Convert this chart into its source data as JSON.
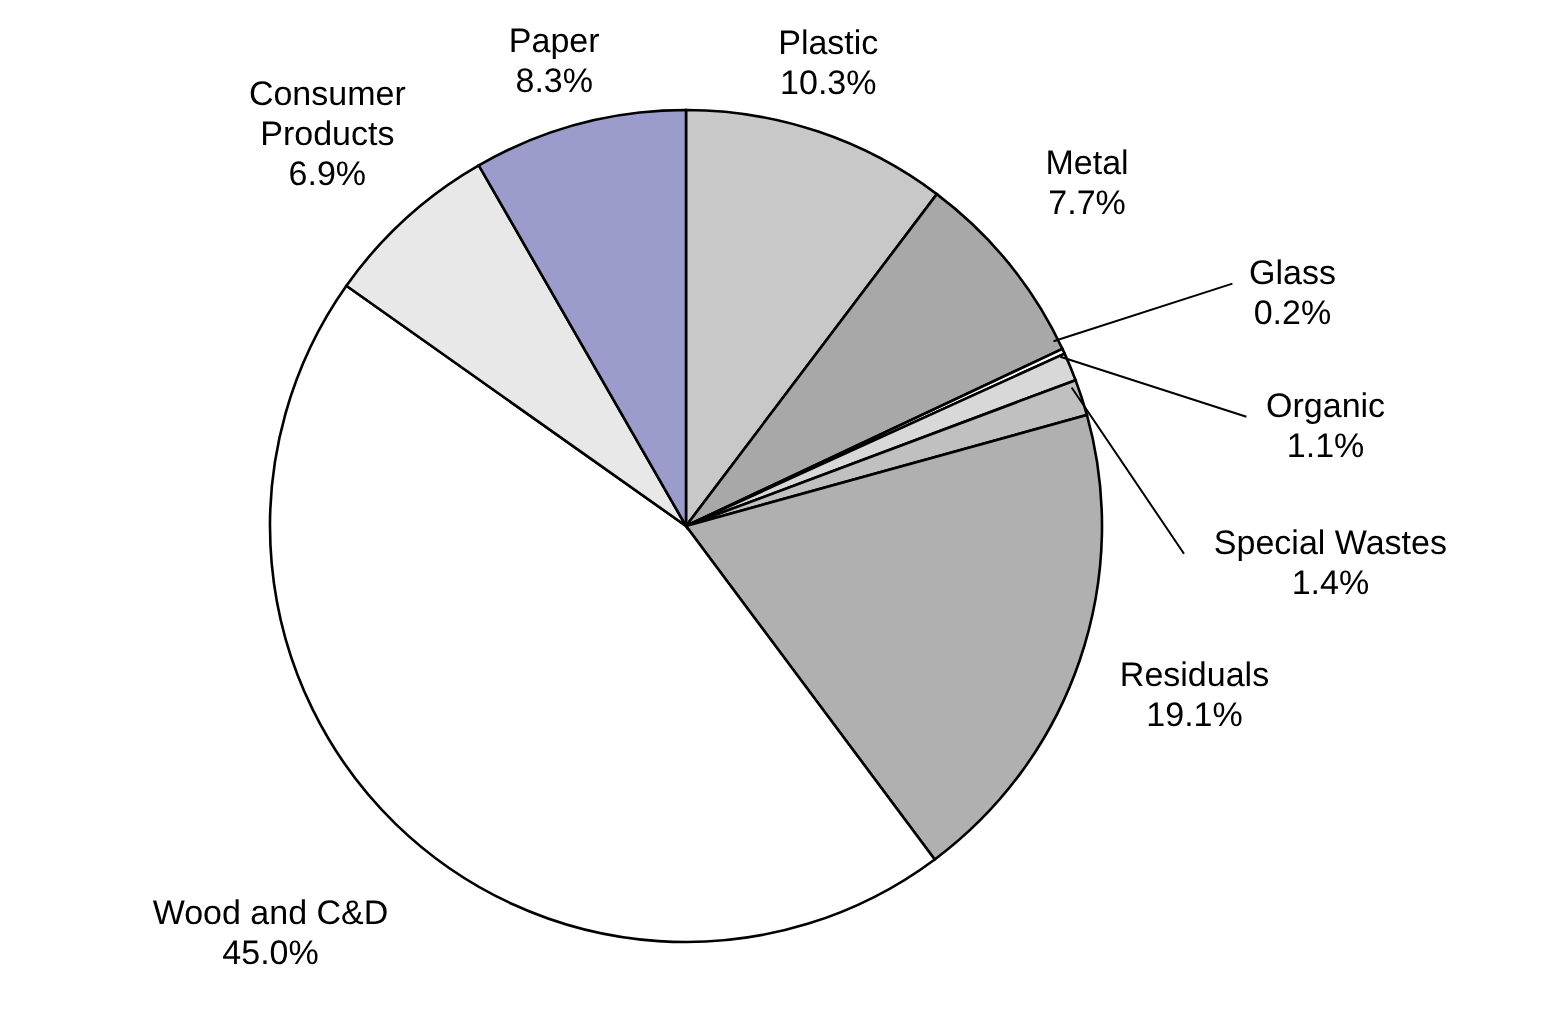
{
  "chart_data": {
    "type": "pie",
    "categories": [
      "Plastic",
      "Metal",
      "Glass",
      "Organic",
      "Special Wastes",
      "Residuals",
      "Wood and C&D",
      "Consumer Products",
      "Paper"
    ],
    "values": [
      10.3,
      7.7,
      0.2,
      1.1,
      1.4,
      19.1,
      45.0,
      6.9,
      8.3
    ],
    "value_labels": [
      "10.3%",
      "7.7%",
      "0.2%",
      "1.1%",
      "1.4%",
      "19.1%",
      "45.0%",
      "6.9%",
      "8.3%"
    ],
    "colors": [
      "#c8c8c8",
      "#a8a8a8",
      "#ffffff",
      "#d8d8d8",
      "#c0c0c0",
      "#b0b0b0",
      "#ffffff",
      "#e8e8e8",
      "#9c9ccc"
    ],
    "legend": false
  }
}
